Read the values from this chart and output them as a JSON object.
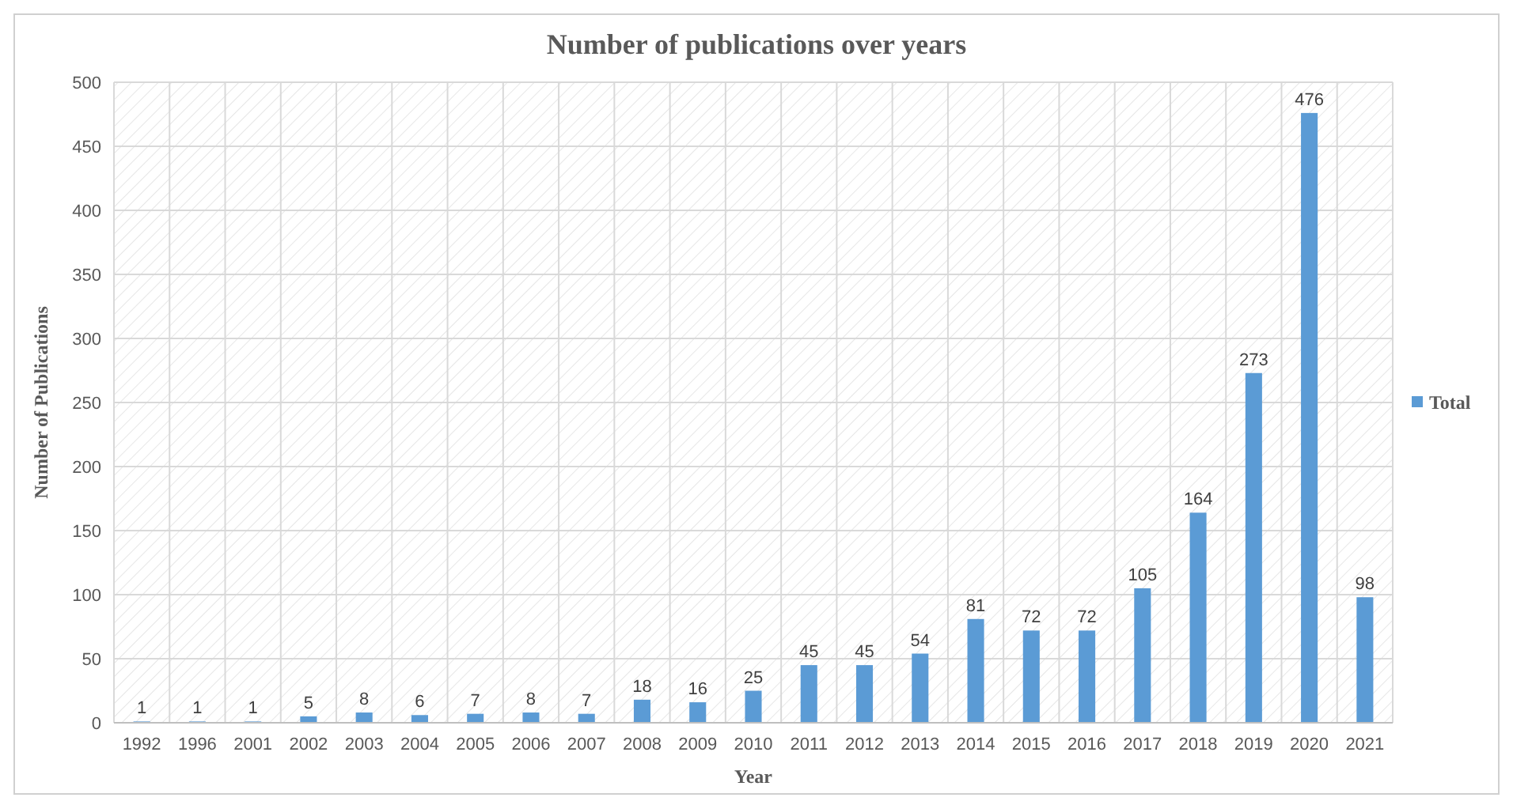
{
  "chart_data": {
    "type": "bar",
    "title": "Number of publications over years",
    "xlabel": "Year",
    "ylabel": "Number of Publications",
    "categories": [
      "1992",
      "1996",
      "2001",
      "2002",
      "2003",
      "2004",
      "2005",
      "2006",
      "2007",
      "2008",
      "2009",
      "2010",
      "2011",
      "2012",
      "2013",
      "2014",
      "2015",
      "2016",
      "2017",
      "2018",
      "2019",
      "2020",
      "2021"
    ],
    "series": [
      {
        "name": "Total",
        "color": "#5b9bd5",
        "values": [
          1,
          1,
          1,
          5,
          8,
          6,
          7,
          8,
          7,
          18,
          16,
          25,
          45,
          45,
          54,
          81,
          72,
          72,
          105,
          164,
          273,
          476,
          98
        ]
      }
    ],
    "ylim": [
      0,
      500
    ],
    "yticks": [
      0,
      50,
      100,
      150,
      200,
      250,
      300,
      350,
      400,
      450,
      500
    ],
    "grid": true,
    "legend": "right",
    "data_labels": true
  }
}
